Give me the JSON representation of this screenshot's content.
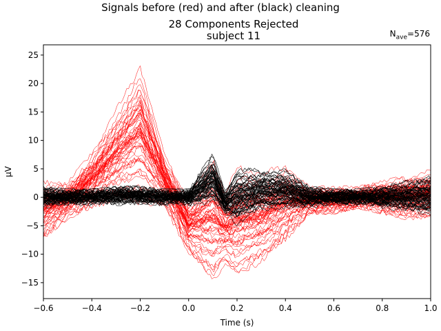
{
  "figure": {
    "suptitle": "Signals before (red) and after (black) cleaning",
    "title_line1": "28 Components Rejected",
    "title_line2": "subject 11",
    "nave_label": "N",
    "nave_sub": "ave",
    "nave_value": "=576"
  },
  "chart_data": {
    "type": "line",
    "xlabel": "Time (s)",
    "ylabel": "µV",
    "xlim": [
      -0.6,
      1.0
    ],
    "ylim": [
      -17.8,
      26.8
    ],
    "xticks": [
      -0.6,
      -0.4,
      -0.2,
      0.0,
      0.2,
      0.4,
      0.6,
      0.8,
      1.0
    ],
    "xtick_labels": [
      "−0.6",
      "−0.4",
      "−0.2",
      "0.0",
      "0.2",
      "0.4",
      "0.6",
      "0.8",
      "1.0"
    ],
    "yticks": [
      -15,
      -10,
      -5,
      0,
      5,
      10,
      15,
      20,
      25
    ],
    "ytick_labels": [
      "−15",
      "−10",
      "−5",
      "0",
      "5",
      "10",
      "15",
      "20",
      "25"
    ],
    "grid": false,
    "legend": "none",
    "series": [
      {
        "color": "#ff0000",
        "count": 60,
        "envelope_x": [
          -0.6,
          -0.5,
          -0.4,
          -0.3,
          -0.2,
          -0.1,
          0.0,
          0.1,
          0.15,
          0.2,
          0.3,
          0.4,
          0.5,
          0.6,
          0.7,
          0.8,
          0.9,
          1.0
        ],
        "envelope_max": [
          3,
          3,
          8,
          16,
          24.5,
          8,
          0,
          8,
          1,
          6,
          5,
          6,
          2,
          2,
          2,
          3,
          4,
          5
        ],
        "envelope_min": [
          -7.5,
          -4,
          -2,
          -1,
          -2,
          -2,
          -10,
          -15.5,
          -12,
          -14.5,
          -12,
          -8,
          -3,
          -3,
          -2,
          -3,
          -4,
          -4
        ]
      },
      {
        "color": "#000000",
        "count": 60,
        "envelope_x": [
          -0.6,
          -0.5,
          -0.4,
          -0.3,
          -0.2,
          -0.1,
          0.0,
          0.1,
          0.15,
          0.2,
          0.3,
          0.4,
          0.5,
          0.6,
          0.7,
          0.8,
          0.9,
          1.0
        ],
        "envelope_max": [
          2,
          1.5,
          1.5,
          2,
          2,
          1.5,
          1.5,
          8,
          1,
          5.5,
          5,
          5,
          2,
          1.5,
          1.5,
          2,
          3,
          4
        ],
        "envelope_min": [
          -2,
          -1.5,
          -1.5,
          -1.5,
          -1.5,
          -1.5,
          -1.5,
          -2,
          -3,
          -5.8,
          -3,
          -3,
          -2,
          -1.5,
          -1.5,
          -2,
          -3,
          -4
        ]
      }
    ]
  }
}
